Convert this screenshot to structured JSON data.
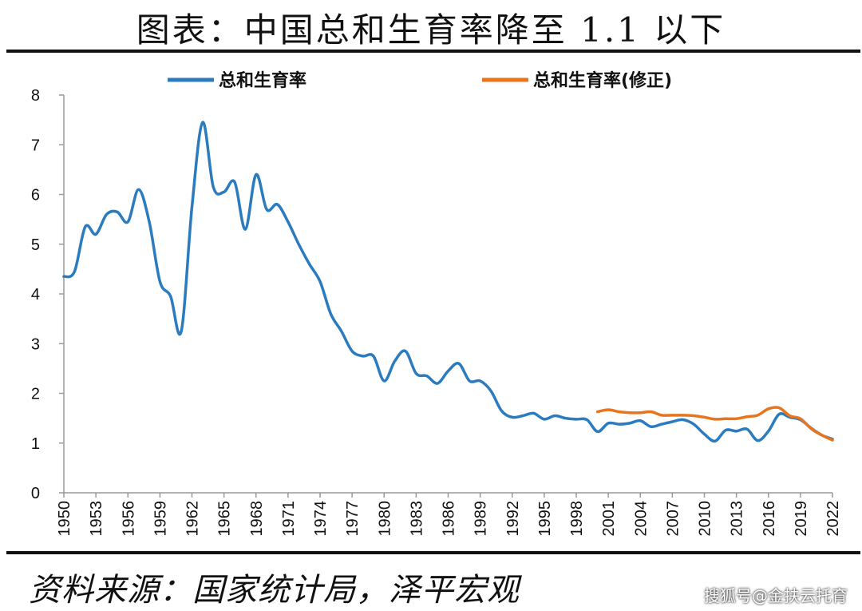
{
  "page": {
    "title": "图表：中国总和生育率降至 1.1 以下",
    "source": "资料来源：国家统计局，泽平宏观",
    "watermark": "搜狐号@金扶云托育"
  },
  "colors": {
    "series1": "#2b7bbf",
    "series2": "#e8741e",
    "axis": "#999999"
  },
  "chart_data": {
    "type": "line",
    "title": "图表：中国总和生育率降至 1.1 以下",
    "xlabel": "",
    "ylabel": "",
    "xlim": [
      1950,
      2022
    ],
    "ylim": [
      0,
      8
    ],
    "yticks": [
      0,
      1,
      2,
      3,
      4,
      5,
      6,
      7,
      8
    ],
    "xticks": [
      "1950",
      "1953",
      "1956",
      "1959",
      "1962",
      "1965",
      "1968",
      "1971",
      "1974",
      "1977",
      "1980",
      "1983",
      "1986",
      "1989",
      "1992",
      "1995",
      "1998",
      "2001",
      "2004",
      "2007",
      "2010",
      "2013",
      "2016",
      "2019",
      "2022"
    ],
    "legend_position": "top",
    "grid": false,
    "series": [
      {
        "name": "总和生育率",
        "color": "#2b7bbf",
        "x": [
          1950,
          1951,
          1952,
          1953,
          1954,
          1955,
          1956,
          1957,
          1958,
          1959,
          1960,
          1961,
          1962,
          1963,
          1964,
          1965,
          1966,
          1967,
          1968,
          1969,
          1970,
          1971,
          1972,
          1973,
          1974,
          1975,
          1976,
          1977,
          1978,
          1979,
          1980,
          1981,
          1982,
          1983,
          1984,
          1985,
          1986,
          1987,
          1988,
          1989,
          1990,
          1991,
          1992,
          1993,
          1994,
          1995,
          1996,
          1997,
          1998,
          1999,
          2000,
          2001,
          2002,
          2003,
          2004,
          2005,
          2006,
          2007,
          2008,
          2009,
          2010,
          2011,
          2012,
          2013,
          2014,
          2015,
          2016,
          2017,
          2018,
          2019,
          2020,
          2021,
          2022
        ],
        "values": [
          4.35,
          4.45,
          5.35,
          5.2,
          5.6,
          5.65,
          5.45,
          6.1,
          5.45,
          4.25,
          3.95,
          3.25,
          5.75,
          7.45,
          6.15,
          6.05,
          6.25,
          5.3,
          6.4,
          5.7,
          5.8,
          5.45,
          5.0,
          4.6,
          4.25,
          3.6,
          3.25,
          2.85,
          2.75,
          2.75,
          2.25,
          2.65,
          2.85,
          2.4,
          2.35,
          2.2,
          2.45,
          2.6,
          2.25,
          2.25,
          2.05,
          1.65,
          1.52,
          1.55,
          1.6,
          1.48,
          1.55,
          1.5,
          1.48,
          1.47,
          1.23,
          1.4,
          1.38,
          1.4,
          1.45,
          1.33,
          1.38,
          1.43,
          1.47,
          1.38,
          1.18,
          1.04,
          1.26,
          1.24,
          1.28,
          1.05,
          1.24,
          1.58,
          1.52,
          1.47,
          1.3,
          1.16,
          1.08
        ]
      },
      {
        "name": "总和生育率(修正)",
        "color": "#e8741e",
        "x": [
          2000,
          2001,
          2002,
          2003,
          2004,
          2005,
          2006,
          2007,
          2008,
          2009,
          2010,
          2011,
          2012,
          2013,
          2014,
          2015,
          2016,
          2017,
          2018,
          2019,
          2020,
          2021,
          2022
        ],
        "values": [
          1.63,
          1.67,
          1.63,
          1.61,
          1.61,
          1.63,
          1.56,
          1.56,
          1.56,
          1.55,
          1.52,
          1.48,
          1.49,
          1.49,
          1.53,
          1.56,
          1.69,
          1.71,
          1.55,
          1.49,
          1.29,
          1.16,
          1.06
        ]
      }
    ]
  }
}
